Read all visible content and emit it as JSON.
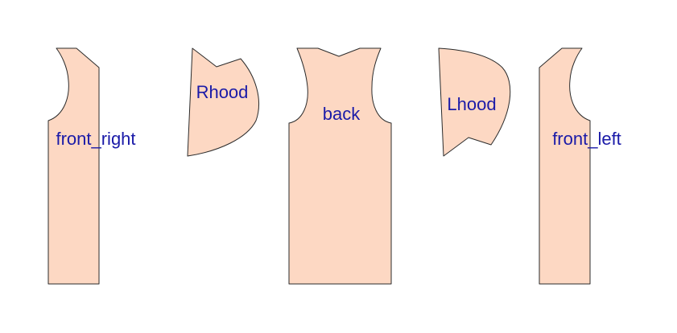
{
  "colors": {
    "background": "#ffffff",
    "piece_fill": "#fdd8c3",
    "piece_stroke": "#2b2b2b",
    "label_text": "#1a1aa8"
  },
  "pieces": {
    "front_right": {
      "label": "front_right"
    },
    "rhood": {
      "label": "Rhood"
    },
    "back": {
      "label": "back"
    },
    "lhood": {
      "label": "Lhood"
    },
    "front_left": {
      "label": "front_left"
    }
  }
}
